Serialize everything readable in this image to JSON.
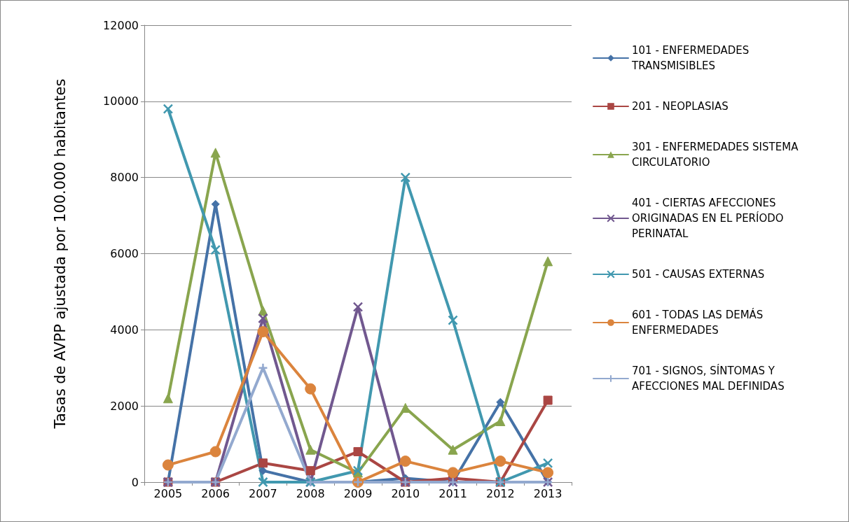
{
  "chart_data": {
    "type": "line",
    "ylabel": "Tasas de AVPP ajustada por 100.000 habitantes",
    "categories": [
      "2005",
      "2006",
      "2007",
      "2008",
      "2009",
      "2010",
      "2011",
      "2012",
      "2013"
    ],
    "ylim": [
      0,
      12000
    ],
    "yticks": [
      0,
      2000,
      4000,
      6000,
      8000,
      10000,
      12000
    ],
    "grid": "y",
    "legend": "right",
    "line_style": "solid",
    "series": [
      {
        "name": "101 - ENFERMEDADES TRANSMISIBLES",
        "color": "#4572a7",
        "marker": "diamond",
        "values": [
          0,
          7300,
          300,
          0,
          0,
          100,
          0,
          2100,
          0
        ]
      },
      {
        "name": "201 - NEOPLASIAS",
        "color": "#aa4643",
        "marker": "square",
        "values": [
          0,
          0,
          500,
          300,
          800,
          0,
          100,
          0,
          2150
        ]
      },
      {
        "name": "301 - ENFERMEDADES SISTEMA CIRCULATORIO",
        "color": "#89a54e",
        "marker": "triangle",
        "values": [
          2200,
          8650,
          4500,
          850,
          250,
          1950,
          850,
          1600,
          5800
        ]
      },
      {
        "name": "401 - CIERTAS AFECCIONES ORIGINADAS EN EL PERÍODO PERINATAL",
        "color": "#71588f",
        "marker": "cross",
        "values": [
          0,
          0,
          4300,
          0,
          4600,
          0,
          0,
          0,
          0
        ]
      },
      {
        "name": "501 - CAUSAS EXTERNAS",
        "color": "#4198af",
        "marker": "cross",
        "values": [
          9800,
          6100,
          0,
          0,
          300,
          8000,
          4250,
          0,
          500
        ]
      },
      {
        "name": "601 - TODAS LAS DEMÁS ENFERMEDADES",
        "color": "#db843d",
        "marker": "circle",
        "values": [
          450,
          800,
          3950,
          2450,
          0,
          550,
          250,
          550,
          250
        ]
      },
      {
        "name": "701 - SIGNOS, SÍNTOMAS Y AFECCIONES MAL DEFINIDAS",
        "color": "#93a9cf",
        "marker": "plus",
        "values": [
          0,
          0,
          3000,
          0,
          0,
          0,
          0,
          0,
          0
        ]
      }
    ]
  }
}
